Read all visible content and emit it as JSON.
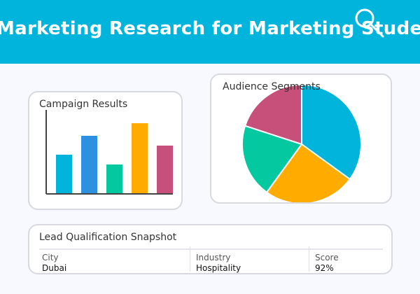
{
  "header": {
    "title": "Marketing Research for Marketing Students",
    "background": "#00b4dc"
  },
  "campaign_card": {
    "title": "Campaign Results"
  },
  "audience_card": {
    "title": "Audience Segments"
  },
  "lead_card": {
    "title": "Lead Qualification Snapshot",
    "columns": [
      {
        "label": "City",
        "value": "Dubai"
      },
      {
        "label": "Industry",
        "value": "Hospitality"
      },
      {
        "label": "Score",
        "value": "92%"
      }
    ]
  },
  "chart_data": [
    {
      "type": "bar",
      "title": "Campaign Results",
      "values": [
        56,
        83,
        42,
        101,
        69
      ],
      "colors": [
        "#00b4dc",
        "#2e90e0",
        "#04c9a0",
        "#ffab00",
        "#c6507a"
      ],
      "ylim": [
        0,
        120
      ],
      "grid": false
    },
    {
      "type": "pie",
      "title": "Audience Segments",
      "values": [
        35,
        25,
        20,
        20
      ],
      "colors": [
        "#00b4dc",
        "#ffab00",
        "#04c9a0",
        "#c6507a"
      ],
      "legend": "none"
    }
  ]
}
